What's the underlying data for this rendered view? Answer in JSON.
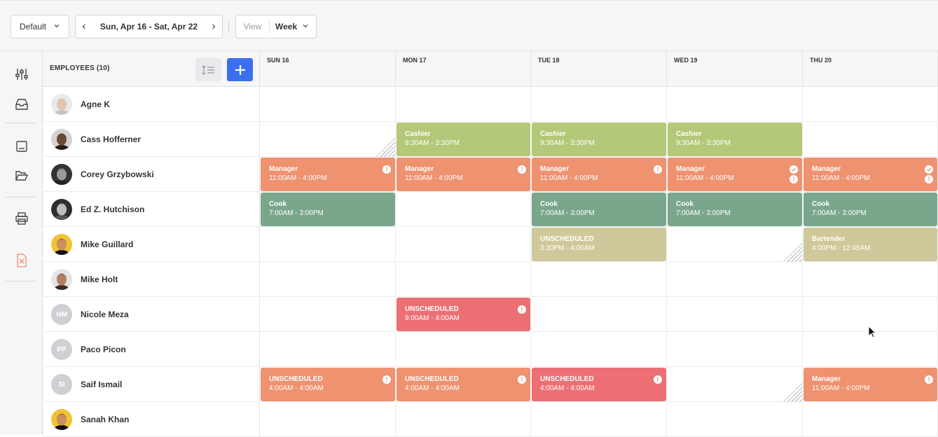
{
  "toolbar": {
    "preset": "Default",
    "date_range": "Sun, Apr 16 - Sat, Apr 22",
    "view_label": "View",
    "view_value": "Week"
  },
  "sidebar": {
    "icons": [
      "sliders-icon",
      "inbox-icon",
      "save-icon",
      "folder-open-icon",
      "printer-icon",
      "delete-document-icon"
    ]
  },
  "header": {
    "employees_title": "EMPLOYEES (10)",
    "days": [
      "SUN 16",
      "MON 17",
      "TUE 18",
      "WED 19",
      "THU 20"
    ]
  },
  "employees": [
    {
      "name": "Agne K",
      "initials": ""
    },
    {
      "name": "Cass Hofferner",
      "initials": ""
    },
    {
      "name": "Corey Grzybowski",
      "initials": ""
    },
    {
      "name": "Ed Z. Hutchison",
      "initials": ""
    },
    {
      "name": "Mike Guillard",
      "initials": ""
    },
    {
      "name": "Mike Holt",
      "initials": ""
    },
    {
      "name": "Nicole Meza",
      "initials": "NM"
    },
    {
      "name": "Paco Picon",
      "initials": "PP"
    },
    {
      "name": "Saif Ismail",
      "initials": "SI"
    },
    {
      "name": "Sanah Khan",
      "initials": ""
    }
  ],
  "shifts": [
    {
      "row": 1,
      "day": 1,
      "role": "Cashier",
      "time": "9:30AM - 3:30PM",
      "color": "green"
    },
    {
      "row": 1,
      "day": 2,
      "role": "Cashier",
      "time": "9:30AM - 3:30PM",
      "color": "green"
    },
    {
      "row": 1,
      "day": 3,
      "role": "Cashier",
      "time": "9:30AM - 3:30PM",
      "color": "green"
    },
    {
      "row": 2,
      "day": 0,
      "role": "Manager",
      "time": "11:00AM - 4:00PM",
      "color": "orange",
      "alert": true
    },
    {
      "row": 2,
      "day": 1,
      "role": "Manager",
      "time": "11:00AM - 4:00PM",
      "color": "orange",
      "alert": true
    },
    {
      "row": 2,
      "day": 2,
      "role": "Manager",
      "time": "11:00AM - 4:00PM",
      "color": "orange",
      "alert": true
    },
    {
      "row": 2,
      "day": 3,
      "role": "Manager",
      "time": "11:00AM - 4:00PM",
      "color": "orange",
      "alert": true,
      "check": true
    },
    {
      "row": 2,
      "day": 4,
      "role": "Manager",
      "time": "11:00AM - 4:00PM",
      "color": "orange",
      "alert": true,
      "check": true
    },
    {
      "row": 3,
      "day": 0,
      "role": "Cook",
      "time": "7:00AM - 3:00PM",
      "color": "teal"
    },
    {
      "row": 3,
      "day": 2,
      "role": "Cook",
      "time": "7:00AM - 3:00PM",
      "color": "teal"
    },
    {
      "row": 3,
      "day": 3,
      "role": "Cook",
      "time": "7:00AM - 3:00PM",
      "color": "teal"
    },
    {
      "row": 3,
      "day": 4,
      "role": "Cook",
      "time": "7:00AM - 3:00PM",
      "color": "teal"
    },
    {
      "row": 4,
      "day": 2,
      "role": "UNSCHEDULED",
      "time": "3:30PM - 4:00AM",
      "color": "khaki"
    },
    {
      "row": 4,
      "day": 4,
      "role": "Bartender",
      "time": "4:00PM - 12:45AM",
      "color": "khaki"
    },
    {
      "row": 6,
      "day": 1,
      "role": "UNSCHEDULED",
      "time": "9:00AM - 4:00AM",
      "color": "red",
      "alert": true
    },
    {
      "row": 8,
      "day": 0,
      "role": "UNSCHEDULED",
      "time": "4:00AM - 4:00AM",
      "color": "orange",
      "alert": true
    },
    {
      "row": 8,
      "day": 1,
      "role": "UNSCHEDULED",
      "time": "4:00AM - 4:00AM",
      "color": "orange",
      "alert": true
    },
    {
      "row": 8,
      "day": 2,
      "role": "UNSCHEDULED",
      "time": "4:00AM - 4:00AM",
      "color": "red",
      "alert": true
    },
    {
      "row": 8,
      "day": 4,
      "role": "Manager",
      "time": "11:00AM - 4:00PM",
      "color": "orange",
      "alert": true
    }
  ],
  "hatched_cells": [
    {
      "row": 1,
      "day": 0
    },
    {
      "row": 4,
      "day": 3
    },
    {
      "row": 8,
      "day": 3
    }
  ]
}
